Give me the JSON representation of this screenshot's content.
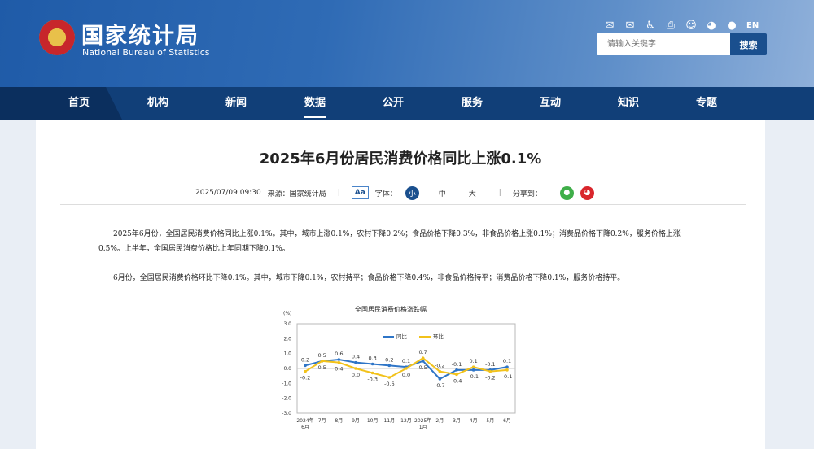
{
  "header": {
    "logo_cn": "国家统计局",
    "logo_en": "National Bureau of Statistics",
    "icons": [
      "mail-icon",
      "mail-subscribe-icon",
      "accessibility-icon",
      "print-icon",
      "robot-icon",
      "weibo-icon",
      "wechat-icon"
    ],
    "lang": "EN",
    "search_placeholder": "请输入关键字",
    "search_label": "搜索"
  },
  "nav": {
    "items": [
      "首页",
      "机构",
      "新闻",
      "数据",
      "公开",
      "服务",
      "互动",
      "知识",
      "专题"
    ],
    "active": "数据"
  },
  "article": {
    "title": "2025年6月份居民消费价格同比上涨0.1%",
    "date": "2025/07/09 09:30",
    "source": "来源：国家统计局",
    "sep": "|",
    "font_icon": "Aa",
    "font_label": "字体：",
    "font_sizes": [
      "小",
      "中",
      "大"
    ],
    "share_label": "分享到：",
    "paragraphs": [
      "2025年6月份，全国居民消费价格同比上涨0.1%。其中，城市上涨0.1%，农村下降0.2%；食品价格下降0.3%，非食品价格上涨0.1%；消费品价格下降0.2%，服务价格上涨0.5%。上半年，全国居民消费价格比上年同期下降0.1%。",
      "6月份，全国居民消费价格环比下降0.1%。其中，城市下降0.1%，农村持平；食品价格下降0.4%，非食品价格持平；消费品价格下降0.1%，服务价格持平。"
    ]
  },
  "colors": {
    "yoy": "#2e75c7",
    "mom": "#f2c21b",
    "nav": "#113f78"
  },
  "chart_data": {
    "type": "line",
    "title": "全国居民消费价格涨跌幅",
    "ylabel": "(%)",
    "ylim": [
      -3,
      3
    ],
    "yticks": [
      "3.0",
      "2.0",
      "1.0",
      "0.0",
      "-1.0",
      "-2.0",
      "-3.0"
    ],
    "categories": [
      "2024年6月",
      "7月",
      "8月",
      "9月",
      "10月",
      "11月",
      "12月",
      "2025年1月",
      "2月",
      "3月",
      "4月",
      "5月",
      "6月"
    ],
    "category_lines": [
      [
        "2024年",
        "6月"
      ],
      [
        "7月"
      ],
      [
        "8月"
      ],
      [
        "9月"
      ],
      [
        "10月"
      ],
      [
        "11月"
      ],
      [
        "12月"
      ],
      [
        "2025年",
        "1月"
      ],
      [
        "2月"
      ],
      [
        "3月"
      ],
      [
        "4月"
      ],
      [
        "5月"
      ],
      [
        "6月"
      ]
    ],
    "legend_position": "top-center",
    "series": [
      {
        "name": "同比",
        "values": [
          0.2,
          0.5,
          0.6,
          0.4,
          0.3,
          0.2,
          0.1,
          0.5,
          -0.7,
          -0.1,
          -0.1,
          -0.1,
          0.1
        ],
        "labels": [
          "0.2",
          "0.5",
          "0.6",
          "0.4",
          "0.3",
          "0.2",
          "0.1",
          "0.5",
          "-0.7",
          "-0.1",
          "-0.1",
          "-0.1",
          "0.1"
        ]
      },
      {
        "name": "环比",
        "values": [
          -0.2,
          0.5,
          0.4,
          0.0,
          -0.3,
          -0.6,
          0.0,
          0.7,
          -0.2,
          -0.4,
          0.1,
          -0.2,
          -0.1
        ],
        "labels": [
          "-0.2",
          "0.5",
          "0.4",
          "0.0",
          "-0.3",
          "-0.6",
          "0.0",
          "0.7",
          "-0.2",
          "-0.4",
          "0.1",
          "-0.2",
          "-0.1"
        ]
      }
    ]
  }
}
